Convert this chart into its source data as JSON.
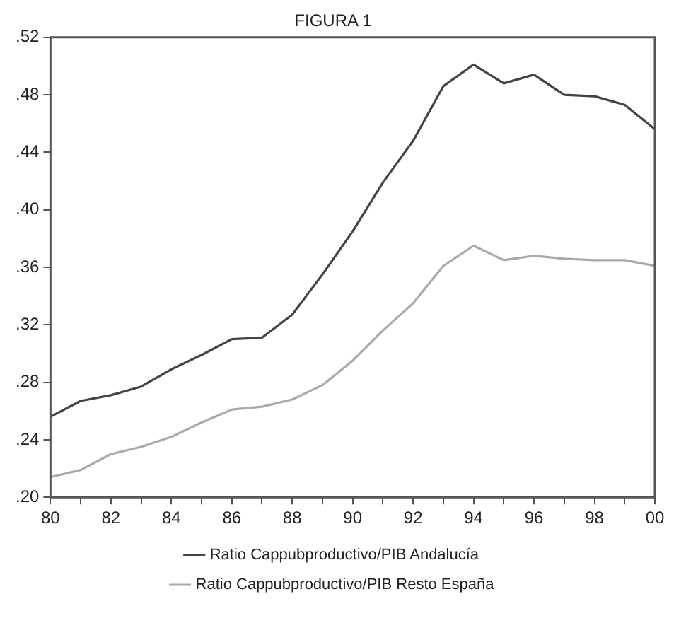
{
  "chart_data": {
    "type": "line",
    "title": "FIGURA 1",
    "x": [
      1980,
      1981,
      1982,
      1983,
      1984,
      1985,
      1986,
      1987,
      1988,
      1989,
      1990,
      1991,
      1992,
      1993,
      1994,
      1995,
      1996,
      1997,
      1998,
      1999,
      2000
    ],
    "series": [
      {
        "name": "Ratio Cappubproductivo/PIB Andalucía",
        "color": "#444444",
        "values": [
          0.256,
          0.267,
          0.271,
          0.277,
          0.289,
          0.299,
          0.31,
          0.311,
          0.327,
          0.355,
          0.385,
          0.419,
          0.448,
          0.486,
          0.501,
          0.488,
          0.494,
          0.48,
          0.479,
          0.473,
          0.456
        ]
      },
      {
        "name": "Ratio Cappubproductivo/PIB Resto España",
        "color": "#aaaaaa",
        "values": [
          0.214,
          0.219,
          0.23,
          0.235,
          0.242,
          0.252,
          0.261,
          0.263,
          0.268,
          0.278,
          0.295,
          0.316,
          0.335,
          0.361,
          0.375,
          0.365,
          0.368,
          0.366,
          0.365,
          0.365,
          0.361
        ]
      }
    ],
    "xlim": [
      1980,
      2000
    ],
    "xticks": [
      {
        "value": 1980,
        "label": "80"
      },
      {
        "value": 1981,
        "label": null
      },
      {
        "value": 1982,
        "label": "82"
      },
      {
        "value": 1983,
        "label": null
      },
      {
        "value": 1984,
        "label": "84"
      },
      {
        "value": 1985,
        "label": null
      },
      {
        "value": 1986,
        "label": "86"
      },
      {
        "value": 1987,
        "label": null
      },
      {
        "value": 1988,
        "label": "88"
      },
      {
        "value": 1989,
        "label": null
      },
      {
        "value": 1990,
        "label": "90"
      },
      {
        "value": 1991,
        "label": null
      },
      {
        "value": 1992,
        "label": "92"
      },
      {
        "value": 1993,
        "label": null
      },
      {
        "value": 1994,
        "label": "94"
      },
      {
        "value": 1995,
        "label": null
      },
      {
        "value": 1996,
        "label": "96"
      },
      {
        "value": 1997,
        "label": null
      },
      {
        "value": 1998,
        "label": "98"
      },
      {
        "value": 1999,
        "label": null
      },
      {
        "value": 2000,
        "label": "00"
      }
    ],
    "ylim": [
      0.2,
      0.52
    ],
    "yticks": [
      {
        "value": 0.2,
        "label": ".20"
      },
      {
        "value": 0.24,
        "label": ".24"
      },
      {
        "value": 0.28,
        "label": ".28"
      },
      {
        "value": 0.32,
        "label": ".32"
      },
      {
        "value": 0.36,
        "label": ".36"
      },
      {
        "value": 0.4,
        "label": ".40"
      },
      {
        "value": 0.44,
        "label": ".44"
      },
      {
        "value": 0.48,
        "label": ".48"
      },
      {
        "value": 0.52,
        "label": ".52"
      }
    ],
    "grid": false,
    "legend": "bottom",
    "marker": "none",
    "line_style": "solid"
  }
}
